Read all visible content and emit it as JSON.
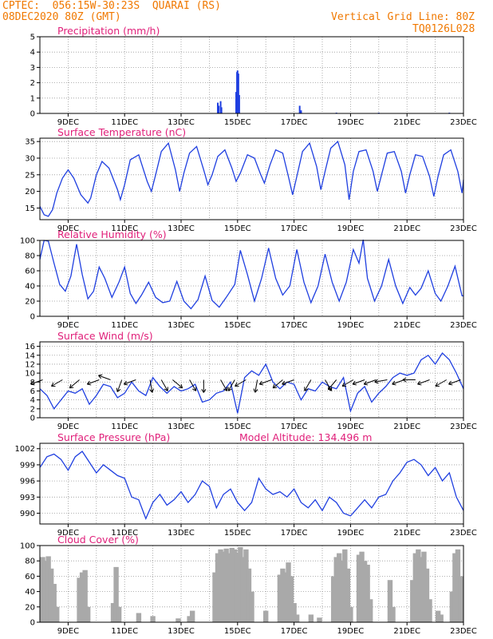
{
  "header": {
    "station": "CPTEC:  056:15W-30:23S  QUARAI (RS)",
    "date": "08DEC2020 80Z (GMT)",
    "grid_line": "Vertical Grid Line: 80Z",
    "code": "TQ0126L028"
  },
  "colors": {
    "header": "#f07800",
    "title": "#e0207a",
    "line": "#1f3fe0",
    "bars": "#a9a9a9"
  },
  "x_tick_labels": [
    "9DEC",
    "11DEC",
    "13DEC",
    "15DEC",
    "17DEC",
    "19DEC",
    "21DEC",
    "23DEC"
  ],
  "chart_data": [
    {
      "type": "bar",
      "title": "Precipitation (mm/h)",
      "ylim": [
        0,
        5
      ],
      "yticks": [
        "0",
        "1",
        "2",
        "3",
        "4",
        "5"
      ],
      "x": [
        14.3,
        14.33,
        14.4,
        14.43,
        14.95,
        14.98,
        15.0,
        15.03,
        15.06,
        17.2,
        17.25,
        18.5,
        20.0,
        22.5
      ],
      "values": [
        0.7,
        0.5,
        0.8,
        0.4,
        1.4,
        2.7,
        2.8,
        2.6,
        1.2,
        0.5,
        0.2,
        0.05,
        0.05,
        0.05
      ]
    },
    {
      "type": "line",
      "title": "Surface Temperature (nC)",
      "ylim": [
        11.5,
        36
      ],
      "yticks": [
        "15",
        "20",
        "25",
        "30",
        "35"
      ],
      "x": [
        8.0,
        8.15,
        8.3,
        8.45,
        8.6,
        8.8,
        9.0,
        9.2,
        9.45,
        9.7,
        9.8,
        10.0,
        10.2,
        10.45,
        10.75,
        10.85,
        11.0,
        11.2,
        11.5,
        11.8,
        11.95,
        12.1,
        12.3,
        12.55,
        12.8,
        12.95,
        13.1,
        13.3,
        13.55,
        13.8,
        13.95,
        14.1,
        14.3,
        14.55,
        14.8,
        14.95,
        15.1,
        15.35,
        15.6,
        15.8,
        15.95,
        16.15,
        16.35,
        16.6,
        16.8,
        16.95,
        17.1,
        17.3,
        17.55,
        17.8,
        17.95,
        18.1,
        18.3,
        18.55,
        18.8,
        18.95,
        19.1,
        19.3,
        19.55,
        19.8,
        19.95,
        20.1,
        20.3,
        20.55,
        20.8,
        20.95,
        21.1,
        21.3,
        21.55,
        21.8,
        21.95,
        22.1,
        22.3,
        22.55,
        22.8,
        22.95,
        23.0
      ],
      "values": [
        15.5,
        13.0,
        12.5,
        14.5,
        19.5,
        24.0,
        26.5,
        24.0,
        19.0,
        16.5,
        18.0,
        25.0,
        29.0,
        27.0,
        20.5,
        17.5,
        22.0,
        29.5,
        31.0,
        23.0,
        20.0,
        25.0,
        32.0,
        34.5,
        26.5,
        20.0,
        25.5,
        31.5,
        33.5,
        26.5,
        22.0,
        25.0,
        30.5,
        32.5,
        27.0,
        23.0,
        25.5,
        31.0,
        30.0,
        25.5,
        22.5,
        28.0,
        32.5,
        31.5,
        24.5,
        19.0,
        24.5,
        32.0,
        34.5,
        27.5,
        20.5,
        26.0,
        33.0,
        35.0,
        28.0,
        17.5,
        26.0,
        32.0,
        32.5,
        26.0,
        20.0,
        25.0,
        31.5,
        32.0,
        26.0,
        19.5,
        25.0,
        31.0,
        30.5,
        24.5,
        18.5,
        24.5,
        31.0,
        32.5,
        26.0,
        19.5,
        23.5
      ]
    },
    {
      "type": "line",
      "title": "Relative Humidity (%)",
      "ylim": [
        0,
        100
      ],
      "yticks": [
        "0",
        "20",
        "40",
        "60",
        "80",
        "100"
      ],
      "x": [
        8.0,
        8.15,
        8.3,
        8.5,
        8.7,
        8.9,
        9.1,
        9.3,
        9.5,
        9.7,
        9.9,
        10.1,
        10.3,
        10.55,
        10.8,
        11.0,
        11.2,
        11.4,
        11.6,
        11.85,
        12.1,
        12.35,
        12.6,
        12.85,
        13.1,
        13.35,
        13.6,
        13.85,
        14.1,
        14.35,
        14.6,
        14.9,
        15.1,
        15.35,
        15.6,
        15.85,
        16.1,
        16.35,
        16.6,
        16.85,
        17.1,
        17.35,
        17.6,
        17.85,
        18.1,
        18.35,
        18.6,
        18.85,
        19.1,
        19.3,
        19.45,
        19.6,
        19.85,
        20.1,
        20.35,
        20.6,
        20.85,
        21.1,
        21.3,
        21.5,
        21.75,
        22.0,
        22.2,
        22.45,
        22.7,
        22.95,
        23.0
      ],
      "values": [
        75.0,
        100.0,
        99.0,
        70.0,
        42.0,
        33.0,
        53.0,
        95.0,
        55.0,
        23.0,
        33.0,
        65.0,
        50.0,
        25.0,
        45.0,
        65.0,
        30.0,
        17.0,
        28.0,
        45.0,
        25.0,
        18.0,
        20.0,
        46.0,
        20.0,
        10.0,
        22.0,
        53.0,
        21.0,
        12.0,
        25.0,
        42.0,
        87.0,
        55.0,
        20.0,
        50.0,
        90.0,
        50.0,
        28.0,
        40.0,
        88.0,
        45.0,
        18.0,
        40.0,
        82.0,
        45.0,
        20.0,
        45.0,
        88.0,
        70.0,
        101.0,
        50.0,
        20.0,
        40.0,
        75.0,
        40.0,
        17.0,
        38.0,
        28.0,
        37.0,
        60.0,
        30.0,
        20.0,
        40.0,
        66.0,
        27.0,
        27.0
      ]
    },
    {
      "type": "line",
      "title": "Surface Wind (m/s)",
      "ylim": [
        0,
        17
      ],
      "yticks": [
        "0",
        "2",
        "4",
        "6",
        "8",
        "10",
        "12",
        "14",
        "16"
      ],
      "x": [
        8.0,
        8.25,
        8.5,
        8.75,
        9.0,
        9.25,
        9.5,
        9.75,
        10.0,
        10.25,
        10.5,
        10.75,
        11.0,
        11.25,
        11.5,
        11.75,
        12.0,
        12.25,
        12.5,
        12.75,
        13.0,
        13.25,
        13.5,
        13.75,
        14.0,
        14.25,
        14.5,
        14.75,
        15.0,
        15.25,
        15.5,
        15.75,
        16.0,
        16.25,
        16.5,
        16.75,
        17.0,
        17.25,
        17.5,
        17.75,
        18.0,
        18.25,
        18.5,
        18.75,
        19.0,
        19.25,
        19.5,
        19.75,
        20.0,
        20.25,
        20.5,
        20.75,
        21.0,
        21.25,
        21.5,
        21.75,
        22.0,
        22.25,
        22.5,
        22.75,
        23.0
      ],
      "values": [
        6.5,
        5.0,
        2.0,
        4.0,
        6.0,
        5.5,
        6.5,
        3.0,
        5.0,
        7.5,
        7.0,
        4.5,
        5.5,
        8.0,
        6.0,
        5.0,
        9.0,
        7.0,
        5.5,
        7.0,
        6.0,
        6.5,
        7.5,
        3.5,
        4.0,
        5.5,
        6.0,
        8.0,
        1.0,
        9.0,
        10.5,
        9.5,
        12.0,
        8.0,
        6.5,
        8.0,
        7.5,
        4.0,
        6.5,
        6.0,
        8.0,
        7.0,
        6.5,
        9.0,
        1.5,
        5.5,
        7.0,
        3.5,
        5.5,
        7.0,
        9.0,
        10.0,
        9.5,
        10.0,
        13.0,
        14.0,
        12.0,
        14.5,
        13.0,
        10.0,
        6.5
      ],
      "arrow_ticks": [
        8.1,
        8.8,
        9.4,
        10.1,
        10.5,
        10.9,
        11.4,
        11.9,
        12.3,
        12.7,
        13.3,
        13.8,
        14.4,
        14.9,
        15.3,
        15.7,
        16.2,
        16.6,
        17.0,
        17.6,
        18.1,
        18.5,
        19.1,
        19.5,
        19.9,
        20.3,
        20.9,
        21.3,
        21.8,
        22.4,
        22.9
      ]
    },
    {
      "type": "line",
      "title": "Surface Pressure (hPa)",
      "annotation": "Model Altitude: 134.496 m",
      "ylim": [
        988,
        1003
      ],
      "yticks": [
        "990",
        "993",
        "996",
        "999",
        "1002"
      ],
      "x": [
        8.0,
        8.25,
        8.5,
        8.75,
        9.0,
        9.25,
        9.5,
        9.75,
        10.0,
        10.25,
        10.5,
        10.75,
        11.0,
        11.25,
        11.5,
        11.75,
        12.0,
        12.25,
        12.5,
        12.75,
        13.0,
        13.25,
        13.5,
        13.75,
        14.0,
        14.25,
        14.5,
        14.75,
        15.0,
        15.25,
        15.5,
        15.75,
        16.0,
        16.25,
        16.5,
        16.75,
        17.0,
        17.25,
        17.5,
        17.75,
        18.0,
        18.25,
        18.5,
        18.75,
        19.0,
        19.25,
        19.5,
        19.75,
        20.0,
        20.25,
        20.5,
        20.75,
        21.0,
        21.25,
        21.5,
        21.75,
        22.0,
        22.25,
        22.5,
        22.75,
        23.0
      ],
      "values": [
        998.5,
        1000.5,
        1001.0,
        1000.0,
        998.0,
        1000.5,
        1001.5,
        999.5,
        997.5,
        999.0,
        998.0,
        997.0,
        996.5,
        993.0,
        992.5,
        989.0,
        992.0,
        993.5,
        991.5,
        992.5,
        994.0,
        992.0,
        993.5,
        996.0,
        995.0,
        991.0,
        993.5,
        994.5,
        992.0,
        990.5,
        992.0,
        996.5,
        994.5,
        993.5,
        994.0,
        993.0,
        994.5,
        992.0,
        991.0,
        992.5,
        990.5,
        993.0,
        992.0,
        990.0,
        989.5,
        991.0,
        992.5,
        991.0,
        993.0,
        993.5,
        996.0,
        997.5,
        999.5,
        1000.0,
        999.0,
        997.0,
        998.5,
        996.0,
        997.5,
        993.0,
        990.5
      ]
    },
    {
      "type": "bar",
      "title": "Cloud Cover (%)",
      "ylim": [
        0,
        100
      ],
      "yticks": [
        "0",
        "20",
        "40",
        "60",
        "80",
        "100"
      ],
      "x": [
        8.1,
        8.2,
        8.3,
        8.4,
        8.5,
        8.6,
        9.4,
        9.5,
        9.6,
        9.7,
        10.6,
        10.7,
        10.8,
        11.5,
        12.0,
        12.9,
        13.3,
        13.4,
        14.2,
        14.3,
        14.4,
        14.5,
        14.6,
        14.7,
        14.8,
        14.9,
        15.0,
        15.1,
        15.2,
        15.3,
        15.4,
        15.5,
        16.0,
        16.5,
        16.6,
        16.7,
        16.8,
        16.9,
        17.0,
        17.1,
        17.6,
        17.9,
        18.4,
        18.5,
        18.6,
        18.7,
        18.8,
        18.9,
        19.0,
        19.3,
        19.4,
        19.5,
        19.6,
        19.7,
        20.4,
        20.5,
        21.2,
        21.3,
        21.4,
        21.5,
        21.6,
        21.7,
        21.8,
        22.1,
        22.2,
        22.6,
        22.7,
        22.8,
        22.9
      ],
      "values": [
        85,
        80,
        86,
        70,
        50,
        20,
        58,
        65,
        68,
        20,
        25,
        72,
        20,
        12,
        8,
        5,
        8,
        15,
        65,
        90,
        95,
        92,
        96,
        90,
        97,
        95,
        90,
        98,
        85,
        95,
        70,
        40,
        15,
        62,
        70,
        65,
        78,
        60,
        25,
        10,
        10,
        6,
        60,
        85,
        90,
        80,
        95,
        70,
        20,
        88,
        92,
        80,
        75,
        30,
        55,
        20,
        55,
        90,
        95,
        85,
        92,
        70,
        30,
        15,
        10,
        40,
        90,
        95,
        60
      ]
    }
  ]
}
